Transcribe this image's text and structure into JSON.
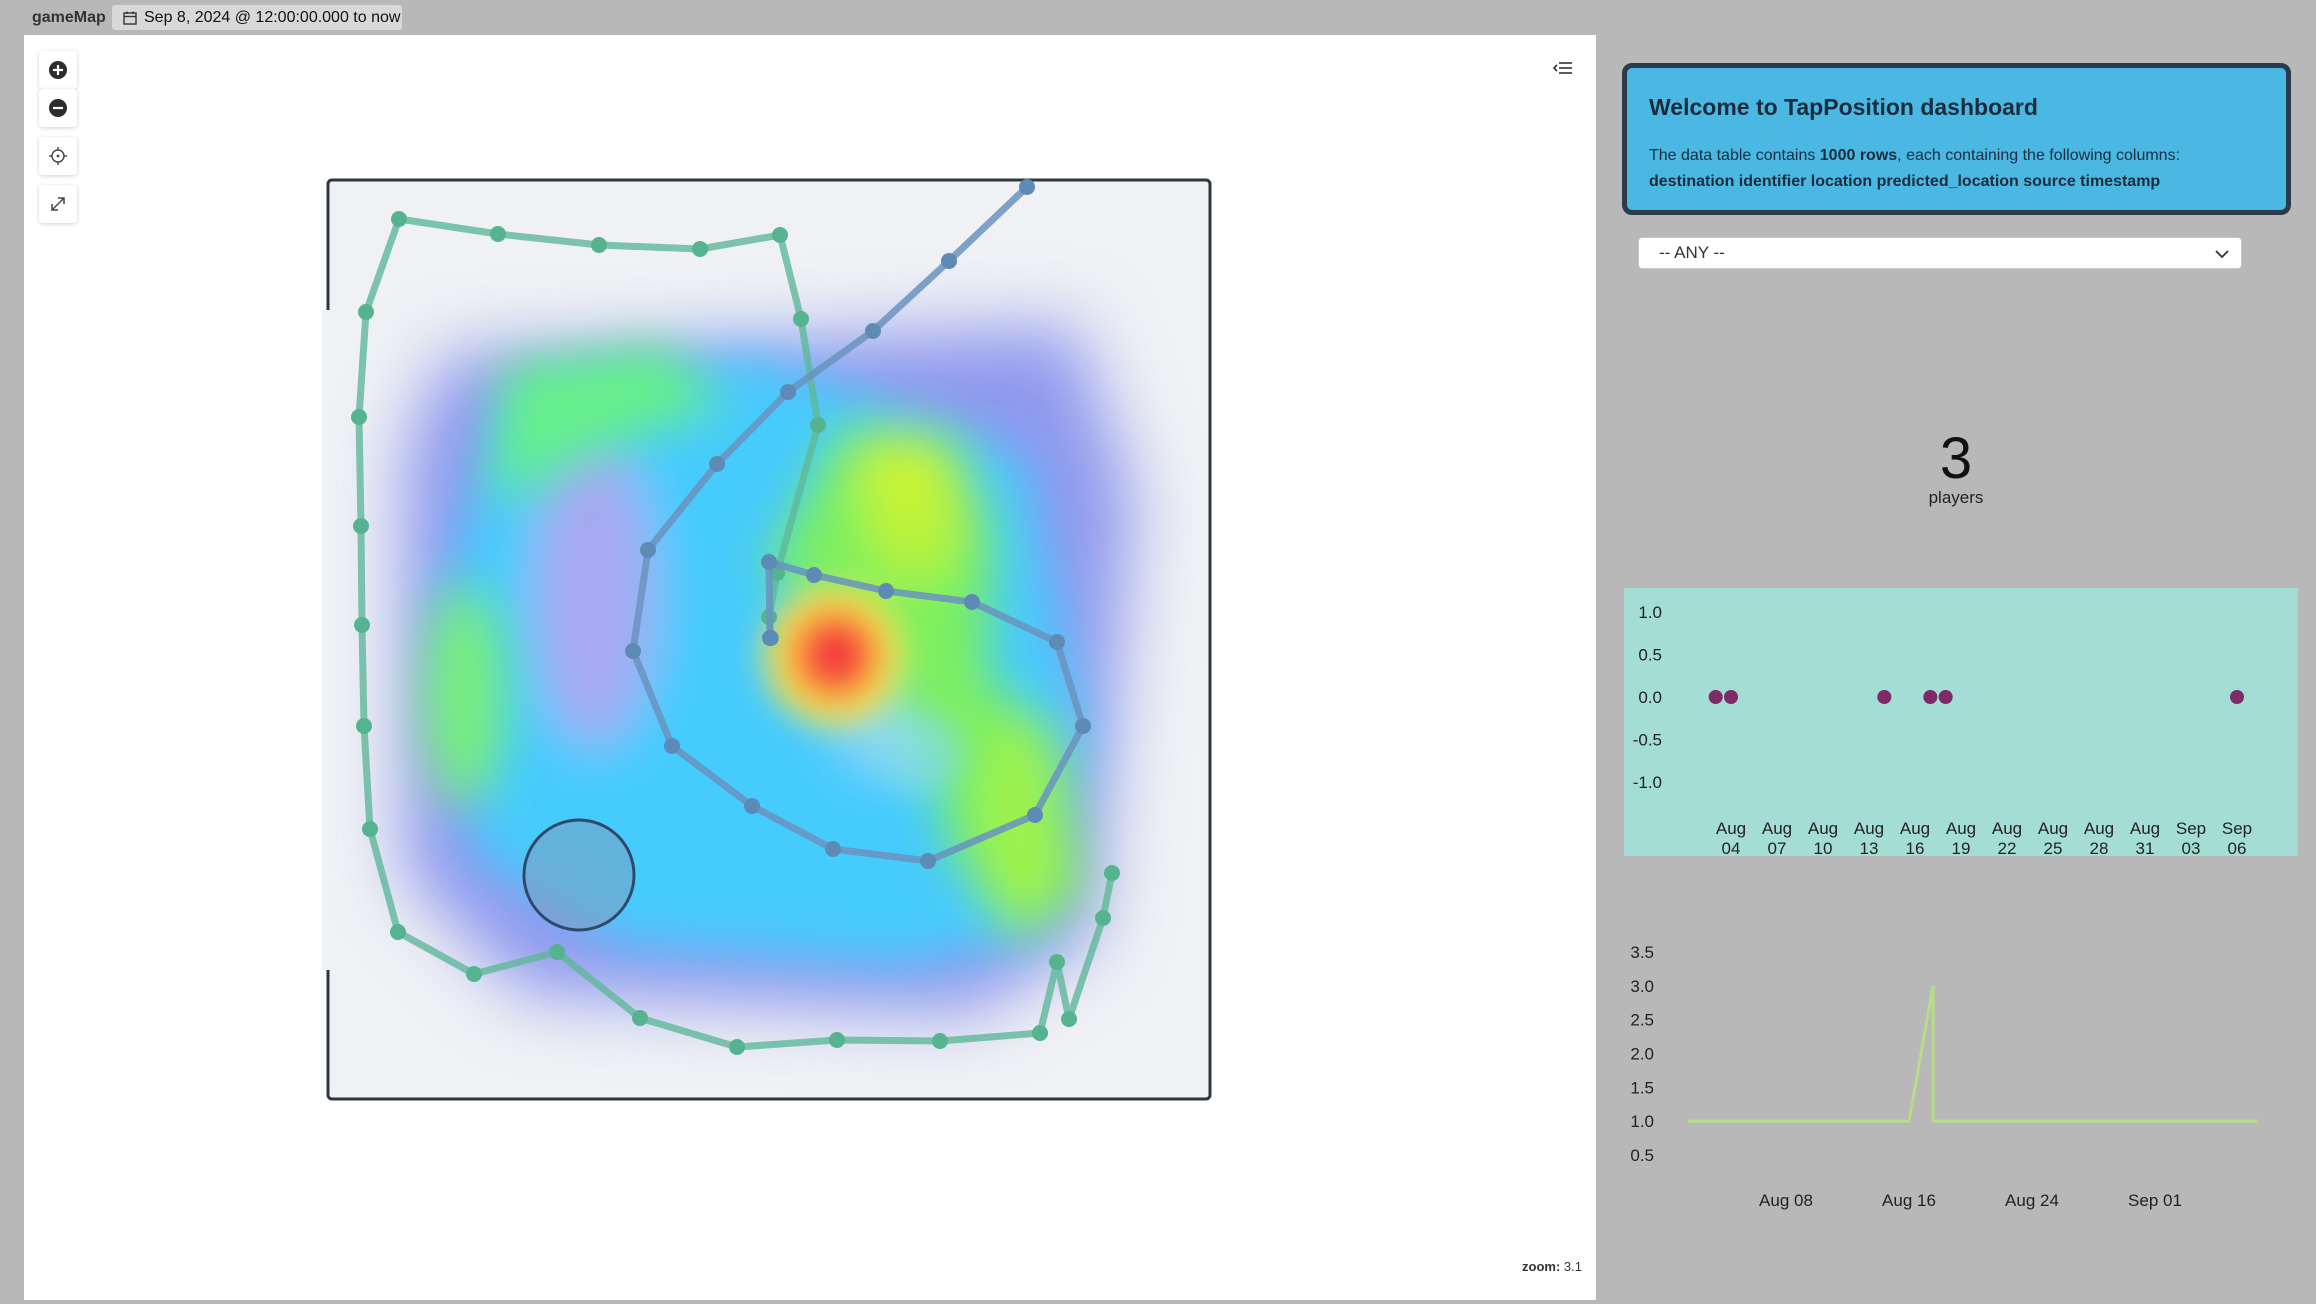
{
  "app": {
    "title": "gameMap",
    "time_range": "Sep 8, 2024 @ 12:00:00.000 to now"
  },
  "map": {
    "controls": [
      "zoom-in",
      "zoom-out",
      "locate",
      "fullscreen"
    ],
    "zoom_label": "zoom:",
    "zoom_value": "3.1"
  },
  "welcome": {
    "title": "Welcome to TapPosition dashboard",
    "desc_prefix": "The data table contains ",
    "rows_text": "1000 rows",
    "desc_suffix": ", each containing the following columns:",
    "columns_text": "destination identifier location predicted_location source timestamp"
  },
  "filter": {
    "selected": "-- ANY --"
  },
  "metric": {
    "value": "3",
    "label": "players"
  },
  "colors": {
    "page_bg": "#b8b8b8",
    "welcome_bg": "#4ab8e3",
    "scatter_bg": "#a3ddd6",
    "scatter_point": "#7d2a66",
    "line_color": "#b6de84",
    "green_path": "#5fb89a",
    "blue_path": "#6a93bf"
  },
  "chart_data": [
    {
      "type": "scatter",
      "x_ticks": [
        "Aug 04",
        "Aug 07",
        "Aug 10",
        "Aug 13",
        "Aug 16",
        "Aug 19",
        "Aug 22",
        "Aug 25",
        "Aug 28",
        "Aug 31",
        "Sep 03",
        "Sep 06"
      ],
      "y_ticks": [
        "1.0",
        "0.5",
        "0.0",
        "-0.5",
        "-1.0"
      ],
      "ylim": [
        -1.0,
        1.0
      ],
      "points": [
        {
          "x": "Aug 03",
          "y": 0.0
        },
        {
          "x": "Aug 04",
          "y": 0.0
        },
        {
          "x": "Aug 14",
          "y": 0.0
        },
        {
          "x": "Aug 17",
          "y": 0.0
        },
        {
          "x": "Aug 18",
          "y": 0.0
        },
        {
          "x": "Sep 06",
          "y": 0.0
        }
      ]
    },
    {
      "type": "line",
      "x_ticks": [
        "Aug 08",
        "Aug 16",
        "Aug 24",
        "Sep 01"
      ],
      "y_ticks": [
        "3.5",
        "3.0",
        "2.5",
        "2.0",
        "1.5",
        "1.0",
        "0.5"
      ],
      "ylim": [
        0.5,
        3.5
      ],
      "series": [
        {
          "points": [
            {
              "x": "Jul 31",
              "y": 1.0
            },
            {
              "x": "Aug 16",
              "y": 1.0
            },
            {
              "x": "Aug 17",
              "y": 3.0
            },
            {
              "x": "Aug 17",
              "y": 1.0
            },
            {
              "x": "Sep 06",
              "y": 1.0
            }
          ]
        }
      ]
    }
  ]
}
